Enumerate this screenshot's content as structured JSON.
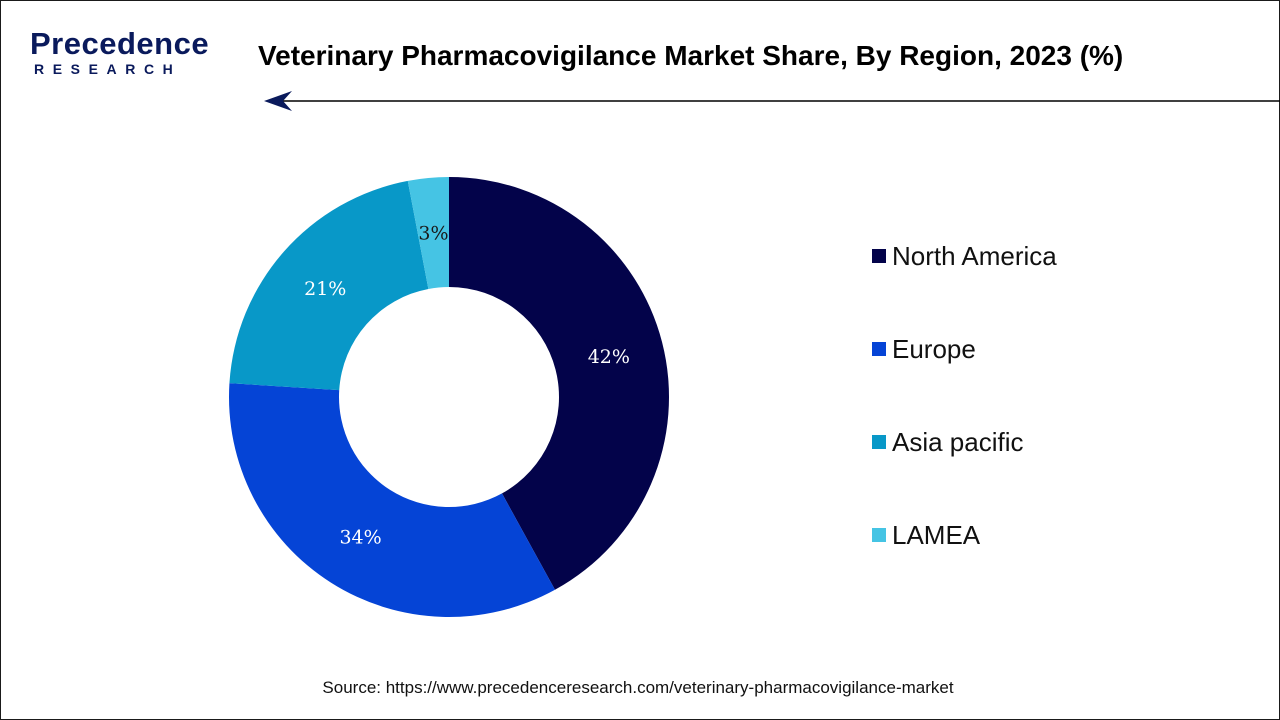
{
  "brand": {
    "name": "Precedence",
    "sub": "RESEARCH",
    "color": "#0a1a5c"
  },
  "header": {
    "title": "Veterinary Pharmacovigilance Market Share, By Region, 2023 (%)"
  },
  "source": {
    "text": "Source: https://www.precedenceresearch.com/veterinary-pharmacovigilance-market"
  },
  "chart_data": {
    "type": "pie",
    "variant": "donut",
    "title": "Veterinary Pharmacovigilance Market Share, By Region, 2023 (%)",
    "categories": [
      "North America",
      "Europe",
      "Asia pacific",
      "LAMEA"
    ],
    "values": [
      42,
      34,
      21,
      3
    ],
    "labels": [
      "42%",
      "34%",
      "21%",
      "3%"
    ],
    "colors": [
      "#03034a",
      "#0544d6",
      "#0898c8",
      "#45c4e4"
    ],
    "label_colors": [
      "#ffffff",
      "#ffffff",
      "#ffffff",
      "#1a1a1a"
    ],
    "legend_position": "right"
  }
}
